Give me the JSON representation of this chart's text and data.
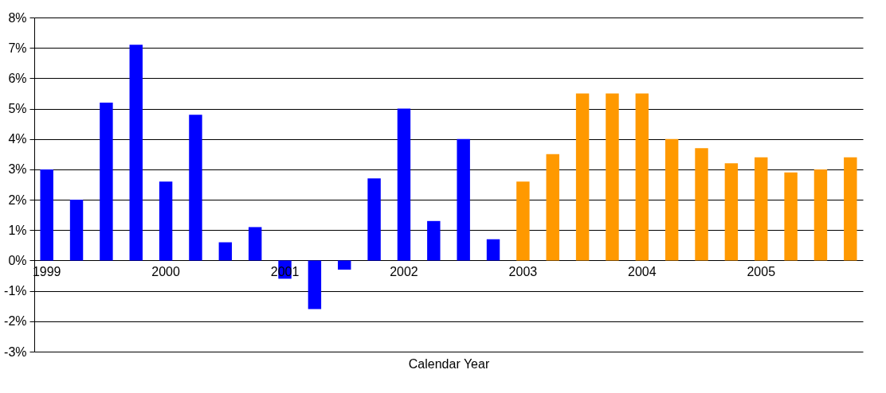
{
  "chart_data": {
    "type": "bar",
    "xlabel": "Calendar Year",
    "categories": [
      "1999",
      null,
      null,
      null,
      "2000",
      null,
      null,
      null,
      "2001",
      null,
      null,
      null,
      "2002",
      null,
      null,
      null,
      "2003",
      null,
      null,
      null,
      "2004",
      null,
      null,
      null,
      "2005",
      null,
      null,
      null
    ],
    "values": [
      3.0,
      2.0,
      5.2,
      7.1,
      2.6,
      4.8,
      0.6,
      1.1,
      -0.6,
      -1.6,
      -0.3,
      2.7,
      5.0,
      1.3,
      4.0,
      0.7,
      2.6,
      3.5,
      5.5,
      5.5,
      5.5,
      4.0,
      3.7,
      3.2,
      3.4,
      2.9,
      3.0,
      3.4
    ],
    "colors": [
      "#0000ff",
      "#0000ff",
      "#0000ff",
      "#0000ff",
      "#0000ff",
      "#0000ff",
      "#0000ff",
      "#0000ff",
      "#0000ff",
      "#0000ff",
      "#0000ff",
      "#0000ff",
      "#0000ff",
      "#0000ff",
      "#0000ff",
      "#0000ff",
      "#ff9900",
      "#ff9900",
      "#ff9900",
      "#ff9900",
      "#ff9900",
      "#ff9900",
      "#ff9900",
      "#ff9900",
      "#ff9900",
      "#ff9900",
      "#ff9900",
      "#ff9900"
    ],
    "ylim": [
      -3,
      8
    ],
    "yticks": [
      {
        "value": -3,
        "label": "-3%"
      },
      {
        "value": -2,
        "label": "-2%"
      },
      {
        "value": -1,
        "label": "-1%"
      },
      {
        "value": 0,
        "label": "0%"
      },
      {
        "value": 1,
        "label": "1%"
      },
      {
        "value": 2,
        "label": "2%"
      },
      {
        "value": 3,
        "label": "3%"
      },
      {
        "value": 4,
        "label": "4%"
      },
      {
        "value": 5,
        "label": "5%"
      },
      {
        "value": 6,
        "label": "6%"
      },
      {
        "value": 7,
        "label": "7%"
      },
      {
        "value": 8,
        "label": "8%"
      }
    ],
    "grid": "y"
  }
}
